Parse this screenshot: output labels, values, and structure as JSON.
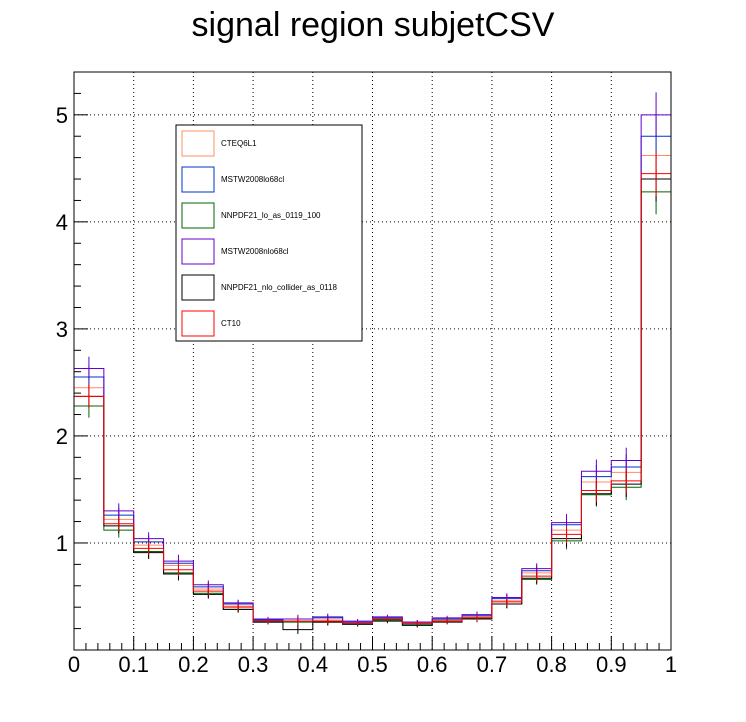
{
  "chart_data": {
    "type": "line",
    "title": "signal region subjetCSV",
    "xlabel": "",
    "ylabel": "",
    "xlim": [
      0,
      1
    ],
    "ylim": [
      0,
      5.4
    ],
    "grid": true,
    "legend_position": "top-left",
    "x_ticks": [
      0,
      0.1,
      0.2,
      0.3,
      0.4,
      0.5,
      0.6,
      0.7,
      0.8,
      0.9,
      1
    ],
    "x_tick_labels": [
      "0",
      "0.1",
      "0.2",
      "0.3",
      "0.4",
      "0.5",
      "0.6",
      "0.7",
      "0.8",
      "0.9",
      "1"
    ],
    "y_ticks": [
      1,
      2,
      3,
      4,
      5
    ],
    "y_tick_labels": [
      "1",
      "2",
      "3",
      "4",
      "5"
    ],
    "bin_edges": [
      0,
      0.05,
      0.1,
      0.15,
      0.2,
      0.25,
      0.3,
      0.35,
      0.4,
      0.45,
      0.5,
      0.55,
      0.6,
      0.65,
      0.7,
      0.75,
      0.8,
      0.85,
      0.9,
      0.95,
      1.0
    ],
    "series": [
      {
        "name": "CTEQ6L1",
        "color": "#ff8c66",
        "values": [
          2.45,
          1.22,
          0.98,
          0.79,
          0.57,
          0.41,
          0.27,
          0.27,
          0.28,
          0.25,
          0.29,
          0.25,
          0.28,
          0.31,
          0.46,
          0.72,
          1.12,
          1.57,
          1.66,
          4.62
        ],
        "errors": [
          0.11,
          0.07,
          0.06,
          0.06,
          0.04,
          0.03,
          0.02,
          0.04,
          0.03,
          0.02,
          0.02,
          0.02,
          0.02,
          0.03,
          0.04,
          0.05,
          0.08,
          0.11,
          0.12,
          0.21
        ]
      },
      {
        "name": "MSTW2008lo68cl",
        "color": "#0033cc",
        "values": [
          2.55,
          1.26,
          1.01,
          0.81,
          0.59,
          0.43,
          0.28,
          0.27,
          0.31,
          0.26,
          0.3,
          0.26,
          0.29,
          0.32,
          0.48,
          0.74,
          1.17,
          1.62,
          1.71,
          4.8
        ],
        "errors": [
          0.11,
          0.07,
          0.06,
          0.06,
          0.04,
          0.03,
          0.02,
          0.04,
          0.03,
          0.02,
          0.02,
          0.02,
          0.02,
          0.03,
          0.04,
          0.05,
          0.08,
          0.11,
          0.12,
          0.21
        ]
      },
      {
        "name": "NNPDF21_lo_as_0119_100",
        "color": "#006600",
        "values": [
          2.28,
          1.12,
          0.92,
          0.72,
          0.53,
          0.38,
          0.26,
          0.26,
          0.26,
          0.24,
          0.28,
          0.24,
          0.27,
          0.3,
          0.43,
          0.66,
          1.02,
          1.45,
          1.52,
          4.28
        ],
        "errors": [
          0.11,
          0.07,
          0.06,
          0.06,
          0.04,
          0.03,
          0.02,
          0.04,
          0.03,
          0.02,
          0.02,
          0.02,
          0.02,
          0.03,
          0.04,
          0.05,
          0.08,
          0.11,
          0.12,
          0.21
        ]
      },
      {
        "name": "MSTW2008nlo68cl",
        "color": "#6600cc",
        "values": [
          2.63,
          1.3,
          1.04,
          0.83,
          0.61,
          0.44,
          0.29,
          0.29,
          0.3,
          0.27,
          0.31,
          0.26,
          0.3,
          0.33,
          0.49,
          0.76,
          1.19,
          1.67,
          1.77,
          5.0
        ],
        "errors": [
          0.11,
          0.07,
          0.06,
          0.06,
          0.04,
          0.03,
          0.02,
          0.04,
          0.03,
          0.02,
          0.02,
          0.02,
          0.02,
          0.03,
          0.04,
          0.05,
          0.08,
          0.11,
          0.12,
          0.21
        ]
      },
      {
        "name": "NNPDF21_nlo_collider_as_0118",
        "color": "#000000",
        "values": [
          2.37,
          1.16,
          0.91,
          0.71,
          0.52,
          0.38,
          0.26,
          0.19,
          0.26,
          0.24,
          0.27,
          0.23,
          0.26,
          0.29,
          0.43,
          0.67,
          1.04,
          1.46,
          1.55,
          4.4
        ],
        "errors": [
          0.11,
          0.07,
          0.06,
          0.06,
          0.04,
          0.03,
          0.02,
          0.04,
          0.03,
          0.02,
          0.02,
          0.02,
          0.02,
          0.03,
          0.04,
          0.05,
          0.08,
          0.11,
          0.12,
          0.21
        ]
      },
      {
        "name": "CT10",
        "color": "#ff0000",
        "values": [
          2.37,
          1.18,
          0.95,
          0.75,
          0.55,
          0.4,
          0.27,
          0.27,
          0.27,
          0.25,
          0.29,
          0.25,
          0.27,
          0.3,
          0.45,
          0.69,
          1.08,
          1.49,
          1.58,
          4.45
        ],
        "errors": [
          0.11,
          0.07,
          0.06,
          0.06,
          0.04,
          0.03,
          0.02,
          0.04,
          0.03,
          0.02,
          0.02,
          0.02,
          0.02,
          0.03,
          0.04,
          0.05,
          0.08,
          0.11,
          0.12,
          0.21
        ]
      }
    ]
  }
}
